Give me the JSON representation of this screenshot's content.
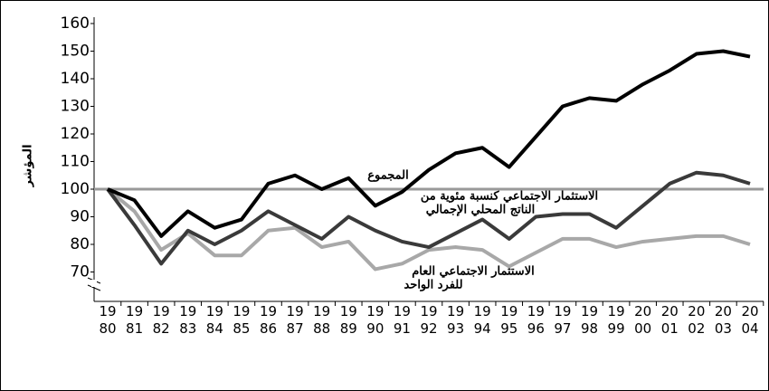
{
  "chart_data": {
    "type": "line",
    "ylabel": "المؤشر",
    "categories": [
      "19 80",
      "19 81",
      "19 82",
      "19 83",
      "19 84",
      "19 85",
      "19 86",
      "19 87",
      "19 88",
      "19 89",
      "19 90",
      "19 91",
      "19 92",
      "19 93",
      "19 94",
      "19 95",
      "19 96",
      "19 97",
      "19 98",
      "19 99",
      "20 00",
      "20 01",
      "20 02",
      "20 03",
      "20 04"
    ],
    "series": [
      {
        "color": "#000000",
        "values": [
          100,
          96,
          83,
          92,
          86,
          89,
          102,
          105,
          100,
          104,
          94,
          99,
          107,
          113,
          115,
          108,
          119,
          130,
          133,
          132,
          138,
          143,
          149,
          150,
          148
        ]
      },
      {
        "color": "#3a3a3a",
        "values": [
          100,
          87,
          73,
          85,
          80,
          85,
          92,
          87,
          82,
          90,
          85,
          81,
          79,
          84,
          89,
          82,
          90,
          91,
          91,
          86,
          94,
          102,
          106,
          105,
          102
        ]
      },
      {
        "color": "#a8a8a8",
        "values": [
          100,
          92,
          78,
          84,
          76,
          76,
          85,
          86,
          79,
          81,
          71,
          73,
          78,
          79,
          78,
          72,
          77,
          82,
          82,
          79,
          81,
          82,
          83,
          83,
          80
        ]
      }
    ],
    "hline": 100,
    "hline_color": "#999999",
    "annotations": [
      "المجموع",
      "الاستثمار الاجتماعي كنسبة مئوية من",
      "الناتج المحلي الإجمالي",
      "الاستثمار الاجتماعي العام",
      "للفرد الواحد"
    ],
    "ylim": [
      60,
      160
    ],
    "yticks": [
      70,
      80,
      90,
      100,
      110,
      120,
      130,
      140,
      150,
      160
    ],
    "grid": false
  }
}
